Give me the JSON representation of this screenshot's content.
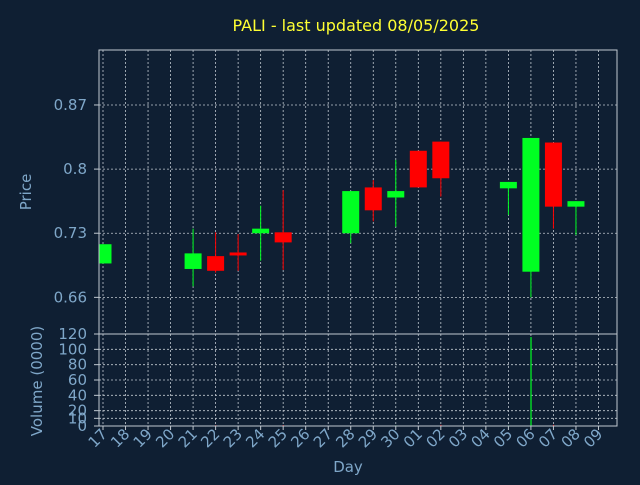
{
  "chart_data": {
    "type": "candlestick",
    "title": "PALI - last updated 08/05/2025",
    "xlabel": "Day",
    "price_panel": {
      "ylabel": "Price",
      "ylim": [
        0.62,
        0.93
      ],
      "yticks": [
        0.66,
        0.73,
        0.8,
        0.87
      ],
      "ytick_labels": [
        "0.66",
        "0.73",
        "0.8",
        "0.87"
      ]
    },
    "volume_panel": {
      "ylabel": "Volume (0000)",
      "ylim": [
        0,
        120
      ],
      "yticks": [
        0,
        10,
        20,
        40,
        60,
        80,
        100,
        120
      ],
      "ytick_labels": [
        "0",
        "10",
        "20",
        "40",
        "60",
        "80",
        "100",
        "120"
      ]
    },
    "x_ticks": [
      "17",
      "18",
      "19",
      "20",
      "21",
      "22",
      "23",
      "24",
      "25",
      "26",
      "27",
      "28",
      "29",
      "30",
      "01",
      "02",
      "03",
      "04",
      "05",
      "06",
      "07",
      "08",
      "09"
    ],
    "candles": [
      {
        "day": "17",
        "open": 0.697,
        "close": 0.718,
        "high": 0.718,
        "low": 0.697,
        "volume": 0.3
      },
      {
        "day": "21",
        "open": 0.691,
        "close": 0.708,
        "high": 0.735,
        "low": 0.672,
        "volume": 0.4
      },
      {
        "day": "22",
        "open": 0.705,
        "close": 0.689,
        "high": 0.731,
        "low": 0.687,
        "volume": 1.0
      },
      {
        "day": "23",
        "open": 0.709,
        "close": 0.706,
        "high": 0.729,
        "low": 0.689,
        "volume": 0.4
      },
      {
        "day": "24",
        "open": 0.73,
        "close": 0.735,
        "high": 0.76,
        "low": 0.7,
        "volume": 0.6
      },
      {
        "day": "25",
        "open": 0.731,
        "close": 0.72,
        "high": 0.777,
        "low": 0.69,
        "volume": 1.2
      },
      {
        "day": "28",
        "open": 0.73,
        "close": 0.776,
        "high": 0.776,
        "low": 0.719,
        "volume": 0.5
      },
      {
        "day": "29",
        "open": 0.78,
        "close": 0.755,
        "high": 0.788,
        "low": 0.743,
        "volume": 0.6
      },
      {
        "day": "30",
        "open": 0.769,
        "close": 0.776,
        "high": 0.81,
        "low": 0.737,
        "volume": 0.8
      },
      {
        "day": "01",
        "open": 0.82,
        "close": 0.78,
        "high": 0.82,
        "low": 0.78,
        "volume": 0.7
      },
      {
        "day": "02",
        "open": 0.83,
        "close": 0.79,
        "high": 0.83,
        "low": 0.77,
        "volume": 1.5
      },
      {
        "day": "05",
        "open": 0.779,
        "close": 0.786,
        "high": 0.786,
        "low": 0.75,
        "volume": 0.8
      },
      {
        "day": "06",
        "open": 0.688,
        "close": 0.834,
        "high": 0.834,
        "low": 0.66,
        "volume": 116
      },
      {
        "day": "07",
        "open": 0.829,
        "close": 0.759,
        "high": 0.829,
        "low": 0.735,
        "volume": 1.5
      },
      {
        "day": "08",
        "open": 0.759,
        "close": 0.765,
        "high": 0.765,
        "low": 0.728,
        "volume": 0.6
      }
    ],
    "colors": {
      "background": "#0f1f33",
      "title": "#ffff33",
      "axis_text": "#7fa7c9",
      "up": "#00ff22",
      "down": "#ff0000",
      "frame": "#c0c8d0",
      "grid": "#c0c8d0"
    },
    "grid": true
  }
}
